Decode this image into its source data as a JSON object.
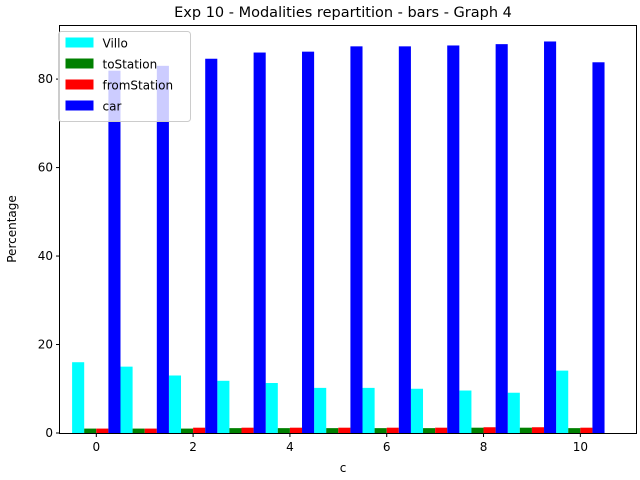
{
  "chart_data": {
    "type": "bar",
    "title": "Exp 10 - Modalities repartition - bars - Graph 4",
    "xlabel": "c",
    "ylabel": "Percentage",
    "x": [
      0,
      1,
      2,
      3,
      4,
      5,
      6,
      7,
      8,
      9,
      10
    ],
    "xlim": [
      -0.75,
      11.15
    ],
    "ylim": [
      0,
      92
    ],
    "xticks": [
      0,
      2,
      4,
      6,
      8,
      10
    ],
    "yticks": [
      0,
      20,
      40,
      60,
      80
    ],
    "grid": false,
    "legend_position": "top-left",
    "series": [
      {
        "name": "Villo",
        "color": "#00ffff",
        "values": [
          16.0,
          15.0,
          13.0,
          11.8,
          11.3,
          10.2,
          10.2,
          10.0,
          9.6,
          9.1,
          14.1
        ]
      },
      {
        "name": "toStation",
        "color": "#008000",
        "values": [
          1.0,
          1.0,
          1.0,
          1.1,
          1.1,
          1.1,
          1.1,
          1.1,
          1.2,
          1.2,
          1.1
        ]
      },
      {
        "name": "fromStation",
        "color": "#ff0000",
        "values": [
          1.0,
          1.0,
          1.2,
          1.2,
          1.2,
          1.2,
          1.2,
          1.2,
          1.3,
          1.3,
          1.2
        ]
      },
      {
        "name": "car",
        "color": "#0000ff",
        "values": [
          81.9,
          83.0,
          84.6,
          86.0,
          86.2,
          87.4,
          87.4,
          87.6,
          87.9,
          88.5,
          83.8
        ]
      }
    ]
  }
}
